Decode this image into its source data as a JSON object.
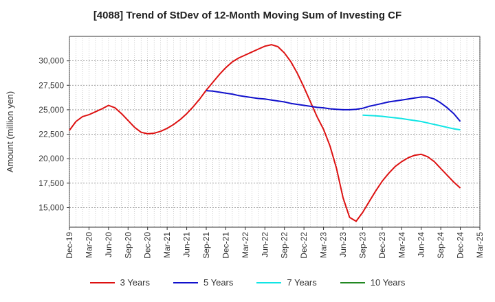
{
  "chart_data": {
    "type": "line",
    "title": "[4088]  Trend of StDev of 12-Month Moving Sum of Investing CF",
    "ylabel": "Amount (million yen)",
    "xlabel": "",
    "x_ticks": [
      "Dec-19",
      "Mar-20",
      "Jun-20",
      "Sep-20",
      "Dec-20",
      "Mar-21",
      "Jun-21",
      "Sep-21",
      "Dec-21",
      "Mar-22",
      "Jun-22",
      "Sep-22",
      "Dec-22",
      "Mar-23",
      "Jun-23",
      "Sep-23",
      "Dec-23",
      "Mar-24",
      "Jun-24",
      "Sep-24",
      "Dec-24",
      "Mar-25"
    ],
    "y_ticks": [
      "15,000",
      "17,500",
      "20,000",
      "22,500",
      "25,000",
      "27,500",
      "30,000"
    ],
    "ylim": [
      13000,
      32500
    ],
    "grid": true,
    "legend_position": "bottom",
    "series": [
      {
        "name": "3 Years",
        "color": "#dd1111",
        "x": [
          "2019-12",
          "2020-01",
          "2020-02",
          "2020-03",
          "2020-04",
          "2020-05",
          "2020-06",
          "2020-07",
          "2020-08",
          "2020-09",
          "2020-10",
          "2020-11",
          "2020-12",
          "2021-01",
          "2021-02",
          "2021-03",
          "2021-04",
          "2021-05",
          "2021-06",
          "2021-07",
          "2021-08",
          "2021-09",
          "2021-10",
          "2021-11",
          "2021-12",
          "2022-01",
          "2022-02",
          "2022-03",
          "2022-04",
          "2022-05",
          "2022-06",
          "2022-07",
          "2022-08",
          "2022-09",
          "2022-10",
          "2022-11",
          "2022-12",
          "2023-01",
          "2023-02",
          "2023-03",
          "2023-04",
          "2023-05",
          "2023-06",
          "2023-07",
          "2023-08",
          "2023-09",
          "2023-10",
          "2023-11",
          "2023-12",
          "2024-01",
          "2024-02",
          "2024-03",
          "2024-04",
          "2024-05",
          "2024-06",
          "2024-07",
          "2024-08",
          "2024-09",
          "2024-10",
          "2024-11",
          "2024-12"
        ],
        "values": [
          22900,
          23800,
          24300,
          24500,
          24800,
          25100,
          25450,
          25200,
          24600,
          23900,
          23200,
          22700,
          22550,
          22600,
          22800,
          23100,
          23500,
          24000,
          24600,
          25300,
          26100,
          27000,
          27800,
          28600,
          29300,
          29900,
          30300,
          30600,
          30900,
          31200,
          31500,
          31650,
          31450,
          30800,
          29900,
          28700,
          27300,
          25800,
          24300,
          23000,
          21300,
          19000,
          16000,
          14000,
          13600,
          14500,
          15600,
          16700,
          17700,
          18500,
          19200,
          19700,
          20100,
          20350,
          20450,
          20200,
          19700,
          19000,
          18300,
          17600,
          17000
        ]
      },
      {
        "name": "5 Years",
        "color": "#1111cc",
        "x": [
          "2021-09",
          "2021-10",
          "2021-11",
          "2021-12",
          "2022-01",
          "2022-02",
          "2022-03",
          "2022-04",
          "2022-05",
          "2022-06",
          "2022-07",
          "2022-08",
          "2022-09",
          "2022-10",
          "2022-11",
          "2022-12",
          "2023-01",
          "2023-02",
          "2023-03",
          "2023-04",
          "2023-05",
          "2023-06",
          "2023-07",
          "2023-08",
          "2023-09",
          "2023-10",
          "2023-11",
          "2023-12",
          "2024-01",
          "2024-02",
          "2024-03",
          "2024-04",
          "2024-05",
          "2024-06",
          "2024-07",
          "2024-08",
          "2024-09",
          "2024-10",
          "2024-11",
          "2024-12"
        ],
        "values": [
          26950,
          26900,
          26800,
          26700,
          26600,
          26450,
          26350,
          26250,
          26150,
          26100,
          26000,
          25900,
          25800,
          25650,
          25550,
          25450,
          25350,
          25250,
          25200,
          25100,
          25050,
          25000,
          25000,
          25050,
          25150,
          25350,
          25500,
          25650,
          25800,
          25900,
          26000,
          26100,
          26200,
          26300,
          26300,
          26100,
          25700,
          25200,
          24600,
          23800
        ]
      },
      {
        "name": "7 Years",
        "color": "#11e5e5",
        "x": [
          "2023-09",
          "2023-10",
          "2023-11",
          "2023-12",
          "2024-01",
          "2024-02",
          "2024-03",
          "2024-04",
          "2024-05",
          "2024-06",
          "2024-07",
          "2024-08",
          "2024-09",
          "2024-10",
          "2024-11",
          "2024-12"
        ],
        "values": [
          24450,
          24420,
          24380,
          24330,
          24250,
          24180,
          24100,
          24000,
          23900,
          23800,
          23650,
          23500,
          23350,
          23200,
          23050,
          22950
        ]
      },
      {
        "name": "10 Years",
        "color": "#228822",
        "x": [],
        "values": []
      }
    ]
  }
}
